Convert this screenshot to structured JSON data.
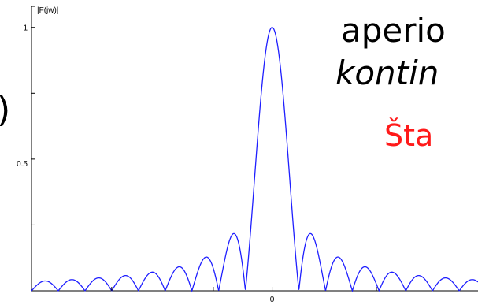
{
  "chart_data": {
    "type": "line",
    "function": "|sinc(x)|",
    "ylabel": "|F(jw)|",
    "x_tick_labels": [
      "0"
    ],
    "y_tick_labels": [
      "0.5",
      "1"
    ],
    "xlim": [
      -9,
      7.7
    ],
    "ylim": [
      0,
      1.08
    ],
    "grid": false,
    "series_color": "#1f1fff"
  },
  "overlay_text": {
    "line1": "aperio",
    "line2": "kontin",
    "line3": "Šta",
    "line3_color": "#ff1a1a",
    "paren": ")"
  }
}
